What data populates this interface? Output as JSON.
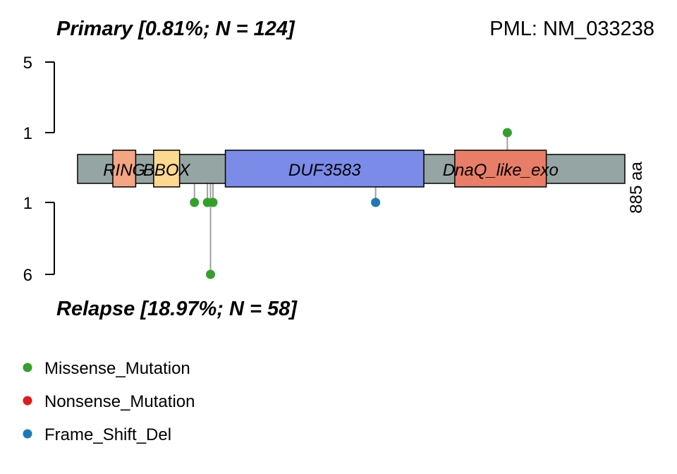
{
  "chart_data": {
    "type": "lollipop",
    "title_top": "Primary [0.81%; N = 124]",
    "title_bottom": "Relapse [18.97%; N = 58]",
    "gene_title": "PML: NM_033238",
    "protein_length_label": "885 aa",
    "protein_length": 885,
    "top_axis": {
      "ticks": [
        1,
        5
      ]
    },
    "bottom_axis": {
      "ticks": [
        1,
        6
      ]
    },
    "domains": [
      {
        "name": "RING",
        "start": 57,
        "end": 94,
        "color": "#F4A582"
      },
      {
        "name": "BBOX",
        "start": 123,
        "end": 165,
        "color": "#FDD98F"
      },
      {
        "name": "DUF3583",
        "start": 239,
        "end": 560,
        "color": "#7B8BE8"
      },
      {
        "name": "DnaQ_like_exo",
        "start": 610,
        "end": 758,
        "color": "#E87E67"
      }
    ],
    "top_mutations": [
      {
        "position": 695,
        "count": 1,
        "type": "Missense_Mutation"
      }
    ],
    "bottom_mutations": [
      {
        "position": 189,
        "count": 1,
        "type": "Missense_Mutation"
      },
      {
        "position": 210,
        "count": 1,
        "type": "Missense_Mutation"
      },
      {
        "position": 215,
        "count": 6,
        "type": "Missense_Mutation"
      },
      {
        "position": 219,
        "count": 1,
        "type": "Missense_Mutation"
      },
      {
        "position": 482,
        "count": 1,
        "type": "Frame_Shift_Del"
      }
    ],
    "legend": [
      {
        "label": "Missense_Mutation",
        "color": "#33A02C"
      },
      {
        "label": "Nonsense_Mutation",
        "color": "#E31A1C"
      },
      {
        "label": "Frame_Shift_Del",
        "color": "#1F78B4"
      }
    ],
    "backbone_color": "#95A5A3"
  }
}
